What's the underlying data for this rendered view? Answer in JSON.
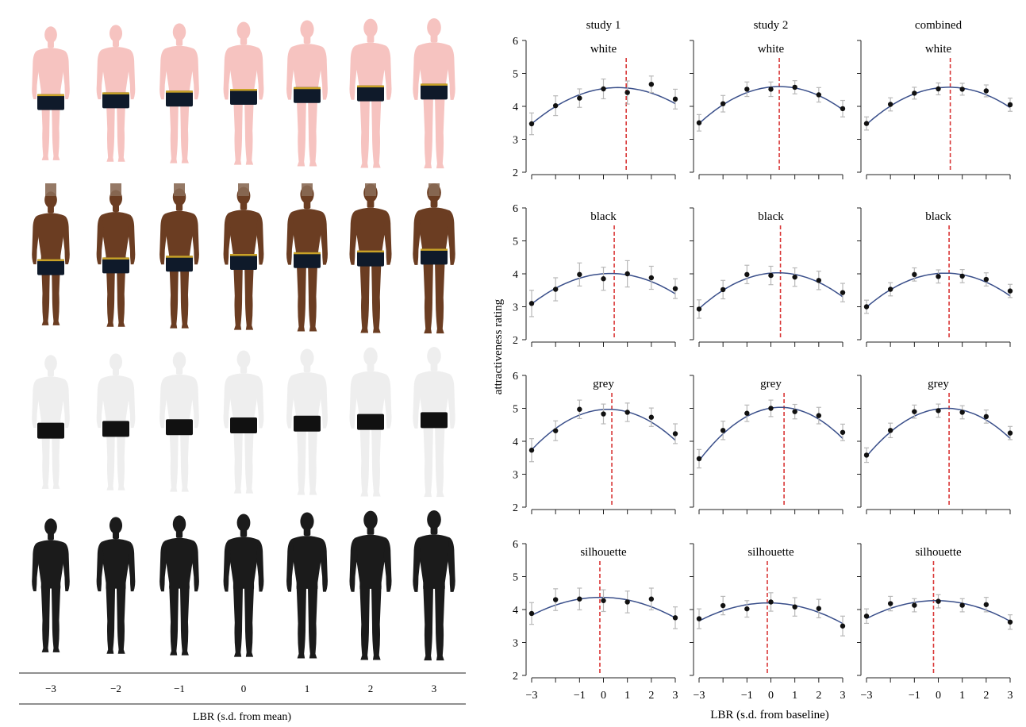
{
  "colors": {
    "fit_curve": "#3a4f8a",
    "ideal_line": "#d93636",
    "points": "#111111",
    "error_bars": "#b8b8b8",
    "axes": "#222222",
    "skin_white": "#f6c3c0",
    "skin_black": "#6b3d22",
    "skin_grey": "#eeeeee",
    "silhouette": "#1b1b1b",
    "underwear_dark": "#0f1a2a",
    "waistband": "#c9a227"
  },
  "figure_panel": {
    "rows": [
      "white",
      "black",
      "grey",
      "silhouette"
    ],
    "lbr_levels": [
      "−3",
      "−2",
      "−1",
      "0",
      "1",
      "2",
      "3"
    ],
    "axis_label": "LBR (s.d. from mean)"
  },
  "chart_data": {
    "type": "scatter",
    "columns": [
      "study 1",
      "study 2",
      "combined"
    ],
    "rows": [
      "white",
      "black",
      "grey",
      "silhouette"
    ],
    "ylabel": "attractiveness rating",
    "xlabel": "LBR (s.d. from baseline)",
    "xlim": [
      -3,
      3
    ],
    "ylim": [
      2,
      6
    ],
    "yticks": [
      2,
      3,
      4,
      5,
      6
    ],
    "xticks": [
      -3,
      -2,
      -1,
      0,
      1,
      2,
      3
    ],
    "xtick_labels": [
      "−3",
      "",
      "−1",
      "0",
      "1",
      "2",
      "3"
    ],
    "x": [
      -3,
      -2,
      -1,
      0,
      1,
      2,
      3
    ],
    "panels": [
      {
        "row": "white",
        "column": "study 1",
        "label": "white",
        "y": [
          3.47,
          4.02,
          4.25,
          4.53,
          4.42,
          4.67,
          4.22
        ],
        "err": [
          0.33,
          0.3,
          0.28,
          0.3,
          0.35,
          0.25,
          0.3
        ],
        "fit": {
          "peak_x": 0.6,
          "peak_y": 4.57,
          "curvature": -0.085
        },
        "ideal_x": 0.95
      },
      {
        "row": "white",
        "column": "study 2",
        "label": "white",
        "y": [
          3.5,
          4.08,
          4.52,
          4.52,
          4.58,
          4.35,
          3.93
        ],
        "err": [
          0.25,
          0.25,
          0.22,
          0.22,
          0.2,
          0.22,
          0.25
        ],
        "fit": {
          "peak_x": 0.35,
          "peak_y": 4.6,
          "curvature": -0.1
        },
        "ideal_x": 0.35
      },
      {
        "row": "white",
        "column": "combined",
        "label": "white",
        "y": [
          3.48,
          4.06,
          4.4,
          4.53,
          4.52,
          4.47,
          4.05
        ],
        "err": [
          0.2,
          0.2,
          0.18,
          0.18,
          0.18,
          0.18,
          0.2
        ],
        "fit": {
          "peak_x": 0.45,
          "peak_y": 4.58,
          "curvature": -0.095
        },
        "ideal_x": 0.5
      },
      {
        "row": "black",
        "column": "study 1",
        "label": "black",
        "y": [
          3.1,
          3.53,
          3.98,
          3.85,
          4.0,
          3.88,
          3.55
        ],
        "err": [
          0.4,
          0.35,
          0.35,
          0.35,
          0.4,
          0.35,
          0.3
        ],
        "fit": {
          "peak_x": 0.3,
          "peak_y": 4.01,
          "curvature": -0.085
        },
        "ideal_x": 0.45
      },
      {
        "row": "black",
        "column": "study 2",
        "label": "black",
        "y": [
          2.93,
          3.52,
          3.98,
          3.95,
          3.9,
          3.8,
          3.43
        ],
        "err": [
          0.28,
          0.28,
          0.28,
          0.28,
          0.28,
          0.28,
          0.28
        ],
        "fit": {
          "peak_x": 0.3,
          "peak_y": 4.03,
          "curvature": -0.1
        },
        "ideal_x": 0.4
      },
      {
        "row": "black",
        "column": "combined",
        "label": "black",
        "y": [
          3.0,
          3.53,
          3.98,
          3.92,
          3.93,
          3.83,
          3.48
        ],
        "err": [
          0.2,
          0.2,
          0.2,
          0.2,
          0.2,
          0.2,
          0.2
        ],
        "fit": {
          "peak_x": 0.3,
          "peak_y": 4.02,
          "curvature": -0.095
        },
        "ideal_x": 0.45
      },
      {
        "row": "grey",
        "column": "study 1",
        "label": "grey",
        "y": [
          3.73,
          4.32,
          4.97,
          4.83,
          4.88,
          4.73,
          4.23
        ],
        "err": [
          0.35,
          0.3,
          0.28,
          0.3,
          0.28,
          0.28,
          0.3
        ],
        "fit": {
          "peak_x": 0.2,
          "peak_y": 4.97,
          "curvature": -0.12
        },
        "ideal_x": 0.35
      },
      {
        "row": "grey",
        "column": "study 2",
        "label": "grey",
        "y": [
          3.47,
          4.33,
          4.85,
          5.0,
          4.9,
          4.78,
          4.27
        ],
        "err": [
          0.28,
          0.28,
          0.25,
          0.25,
          0.22,
          0.25,
          0.25
        ],
        "fit": {
          "peak_x": 0.4,
          "peak_y": 5.03,
          "curvature": -0.14
        },
        "ideal_x": 0.55
      },
      {
        "row": "grey",
        "column": "combined",
        "label": "grey",
        "y": [
          3.58,
          4.33,
          4.9,
          4.93,
          4.88,
          4.75,
          4.25
        ],
        "err": [
          0.22,
          0.22,
          0.2,
          0.2,
          0.2,
          0.2,
          0.2
        ],
        "fit": {
          "peak_x": 0.35,
          "peak_y": 5.0,
          "curvature": -0.13
        },
        "ideal_x": 0.45
      },
      {
        "row": "silhouette",
        "column": "study 1",
        "label": "silhouette",
        "y": [
          3.88,
          4.3,
          4.32,
          4.27,
          4.23,
          4.32,
          3.75
        ],
        "err": [
          0.33,
          0.33,
          0.33,
          0.33,
          0.33,
          0.33,
          0.33
        ],
        "fit": {
          "peak_x": -0.1,
          "peak_y": 4.37,
          "curvature": -0.065
        },
        "ideal_x": -0.15
      },
      {
        "row": "silhouette",
        "column": "study 2",
        "label": "silhouette",
        "y": [
          3.72,
          4.12,
          4.02,
          4.23,
          4.08,
          4.03,
          3.5
        ],
        "err": [
          0.3,
          0.28,
          0.25,
          0.28,
          0.28,
          0.28,
          0.3
        ],
        "fit": {
          "peak_x": -0.1,
          "peak_y": 4.2,
          "curvature": -0.065
        },
        "ideal_x": -0.15
      },
      {
        "row": "silhouette",
        "column": "combined",
        "label": "silhouette",
        "y": [
          3.8,
          4.18,
          4.13,
          4.25,
          4.13,
          4.15,
          3.62
        ],
        "err": [
          0.22,
          0.22,
          0.2,
          0.2,
          0.2,
          0.22,
          0.22
        ],
        "fit": {
          "peak_x": -0.1,
          "peak_y": 4.27,
          "curvature": -0.065
        },
        "ideal_x": -0.2
      }
    ]
  }
}
